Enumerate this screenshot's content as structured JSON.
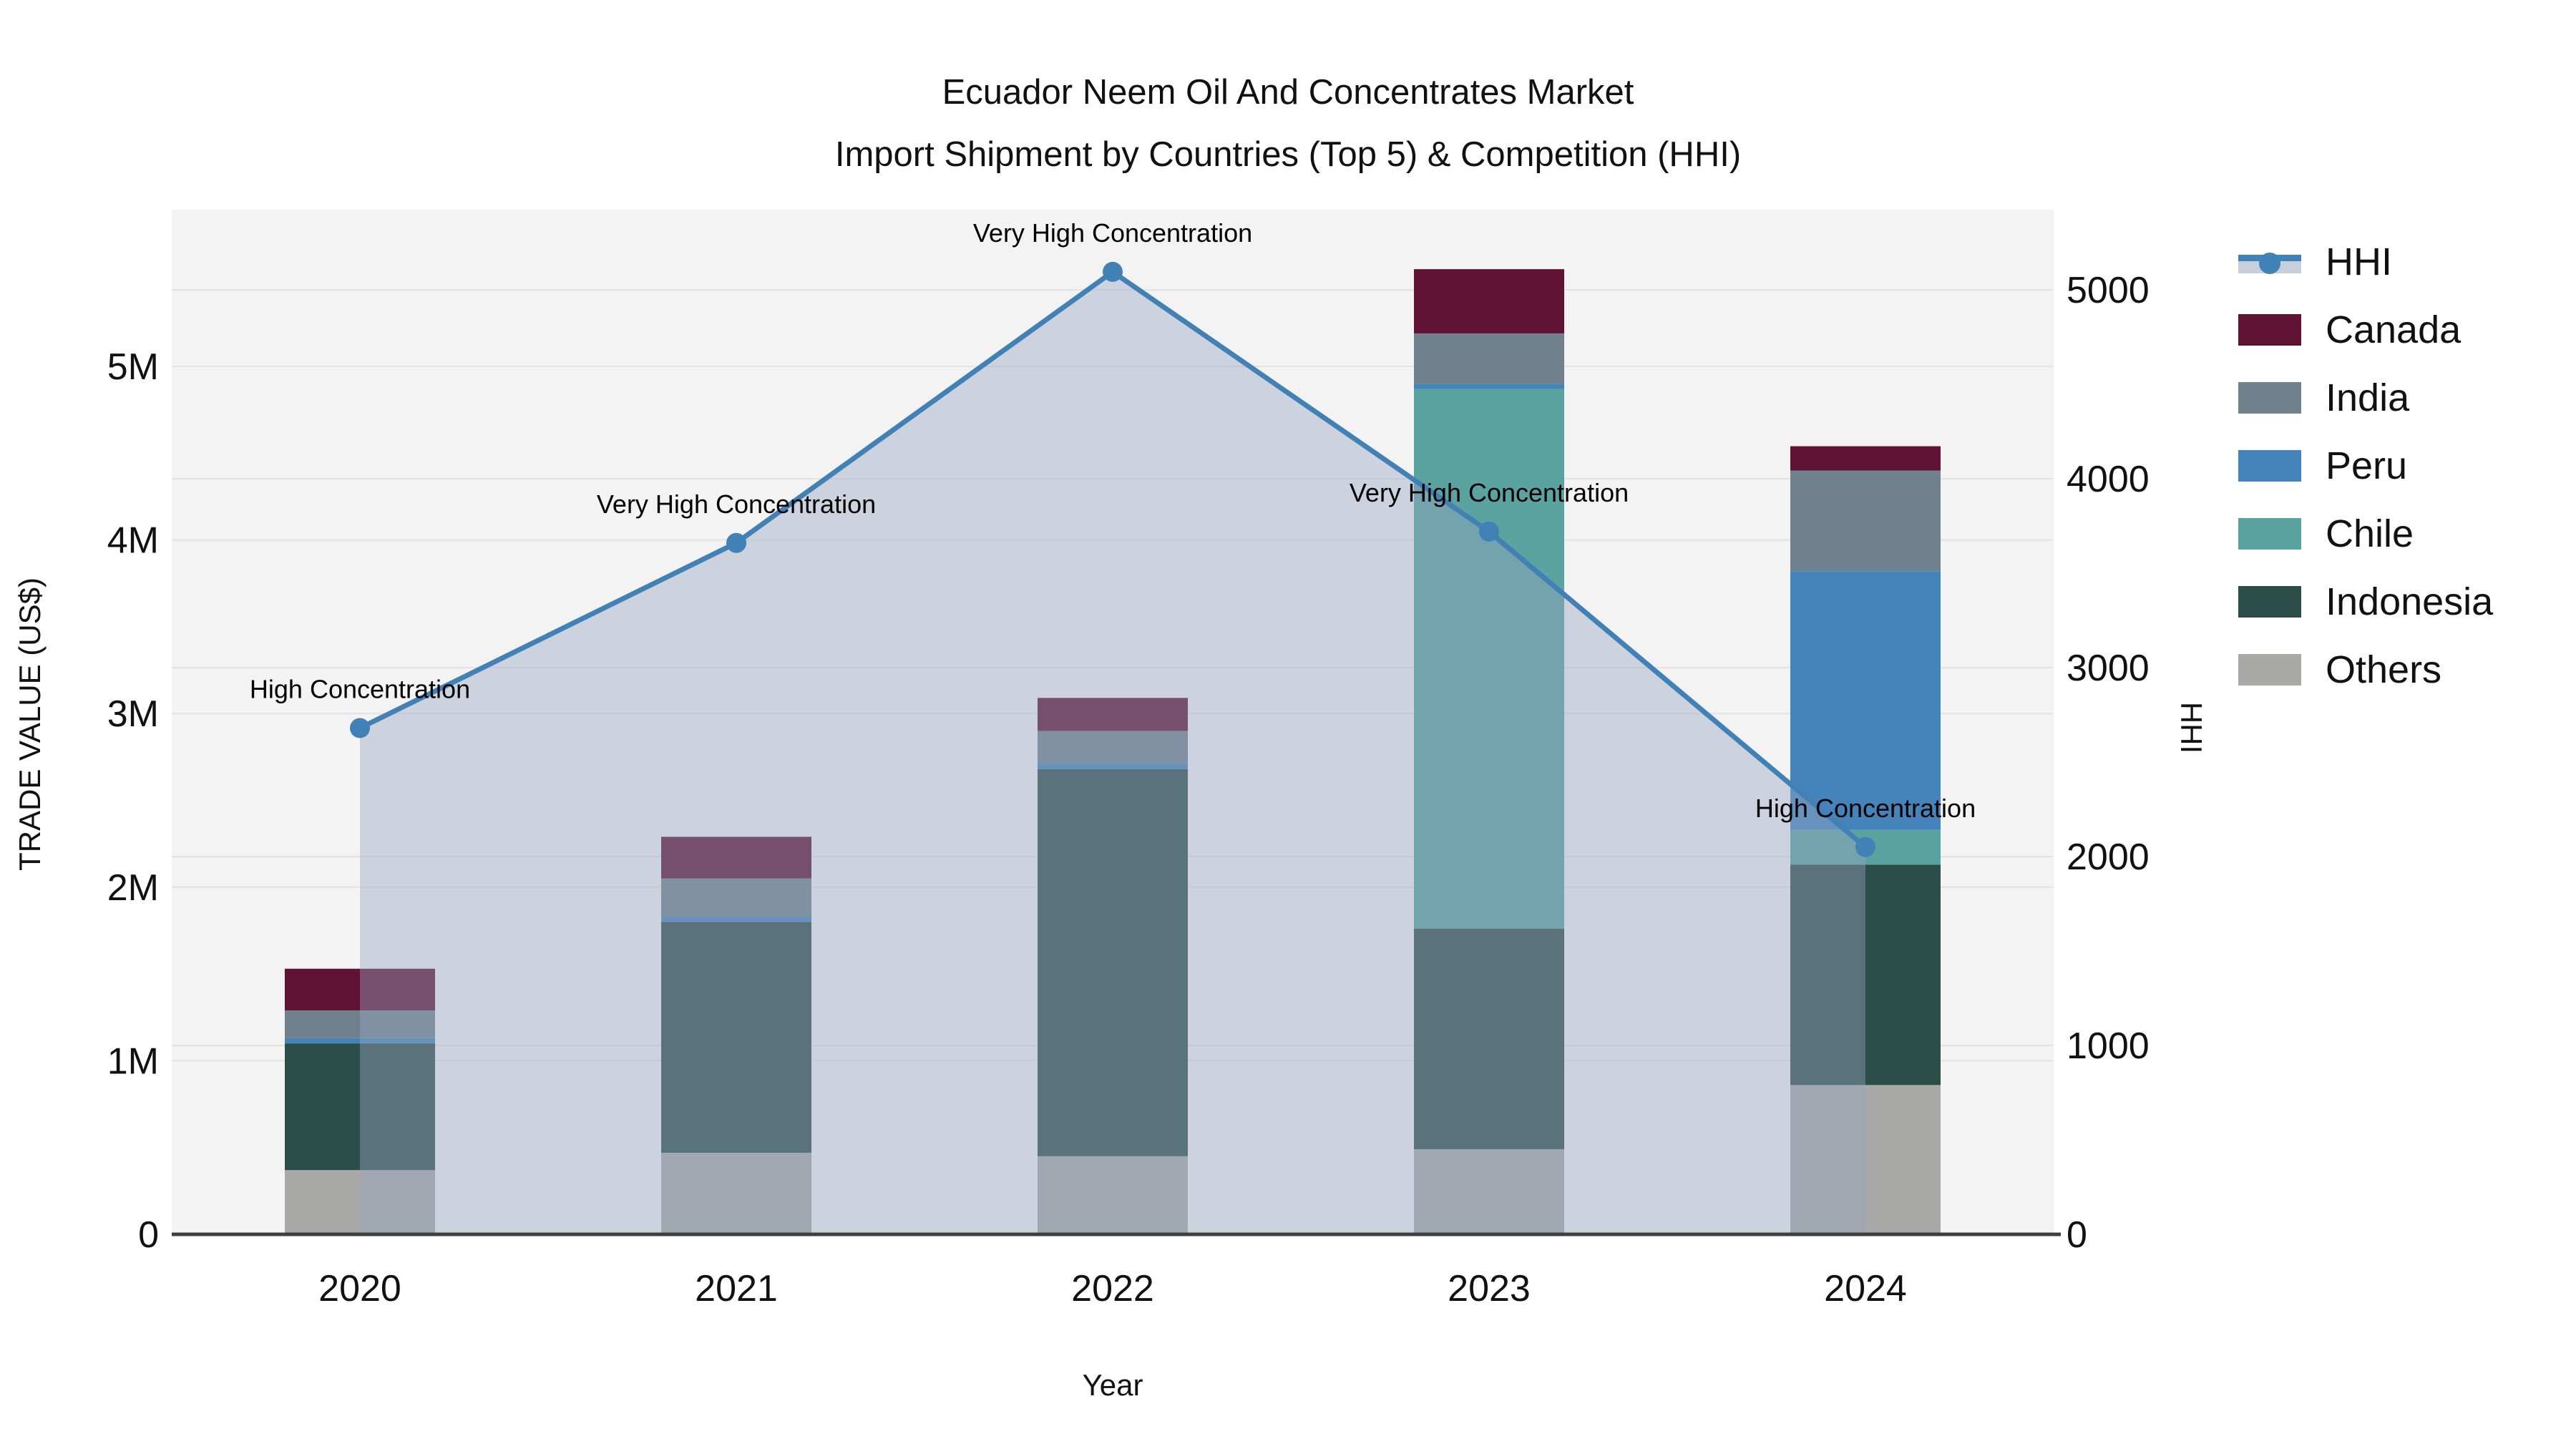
{
  "title": {
    "line1": "Ecuador Neem Oil And Concentrates Market",
    "line2": "Import Shipment by Countries (Top 5) & Competition (HHI)"
  },
  "axes": {
    "left": {
      "title": "TRADE VALUE (US$)",
      "tick_labels": [
        "0",
        "1M",
        "2M",
        "3M",
        "4M",
        "5M"
      ],
      "tick_values": [
        0,
        1,
        2,
        3,
        4,
        5
      ],
      "unit": "million US$",
      "ylim": [
        0,
        5.9
      ]
    },
    "right": {
      "title": "HHI",
      "tick_labels": [
        "0",
        "1000",
        "2000",
        "3000",
        "4000",
        "5000"
      ],
      "tick_values": [
        0,
        1000,
        2000,
        3000,
        4000,
        5000
      ],
      "ylim": [
        0,
        5425
      ]
    },
    "x": {
      "title": "Year"
    }
  },
  "legend": {
    "items": [
      {
        "label": "HHI",
        "type": "line",
        "color": "#4181b5"
      },
      {
        "label": "Canada",
        "type": "box",
        "color": "#5f1232"
      },
      {
        "label": "India",
        "type": "box",
        "color": "#70818e"
      },
      {
        "label": "Peru",
        "type": "box",
        "color": "#4484bb"
      },
      {
        "label": "Chile",
        "type": "box",
        "color": "#5ba3a0"
      },
      {
        "label": "Indonesia",
        "type": "box",
        "color": "#2d4d49"
      },
      {
        "label": "Others",
        "type": "box",
        "color": "#a9a9a7"
      }
    ]
  },
  "chart_data": {
    "type": "bar",
    "subtype": "stacked-bars-with-line-overlay",
    "categories": [
      "2020",
      "2021",
      "2022",
      "2023",
      "2024"
    ],
    "bar_unit": "million US$",
    "series": [
      {
        "name": "Canada",
        "color": "#5f1232",
        "values": [
          0.24,
          0.24,
          0.19,
          0.37,
          0.14
        ]
      },
      {
        "name": "India",
        "color": "#70818e",
        "values": [
          0.16,
          0.22,
          0.19,
          0.29,
          0.58
        ]
      },
      {
        "name": "Peru",
        "color": "#4484bb",
        "values": [
          0.03,
          0.03,
          0.03,
          0.03,
          1.49
        ]
      },
      {
        "name": "Chile",
        "color": "#5ba3a0",
        "values": [
          0.0,
          0.0,
          0.0,
          3.11,
          0.2
        ]
      },
      {
        "name": "Indonesia",
        "color": "#2d4d49",
        "values": [
          0.73,
          1.33,
          2.23,
          1.27,
          1.27
        ]
      },
      {
        "name": "Others",
        "color": "#a9a9a7",
        "values": [
          0.37,
          0.47,
          0.45,
          0.49,
          0.86
        ]
      }
    ],
    "stack_totals": [
      1.53,
      2.29,
      3.09,
      5.56,
      4.54
    ],
    "line_series": {
      "name": "HHI",
      "color": "#4181b5",
      "fill_color": "#96a8c0",
      "values": [
        2680,
        3660,
        5095,
        3720,
        2050
      ],
      "axis": "right",
      "annotations": [
        "High Concentration",
        "Very High Concentration",
        "Very High Concentration",
        "Very High Concentration",
        "High Concentration"
      ]
    },
    "title": "Ecuador Neem Oil And Concentrates Market — Import Shipment by Countries (Top 5) & Competition (HHI)",
    "xlabel": "Year",
    "ylabel": "TRADE VALUE (US$)",
    "ylabel_right": "HHI",
    "grid": true,
    "legend_position": "right",
    "plot_bg": "#f3f3f3",
    "grid_color": "#e3e3e3",
    "axis_line_color": "#3f3f3f"
  }
}
